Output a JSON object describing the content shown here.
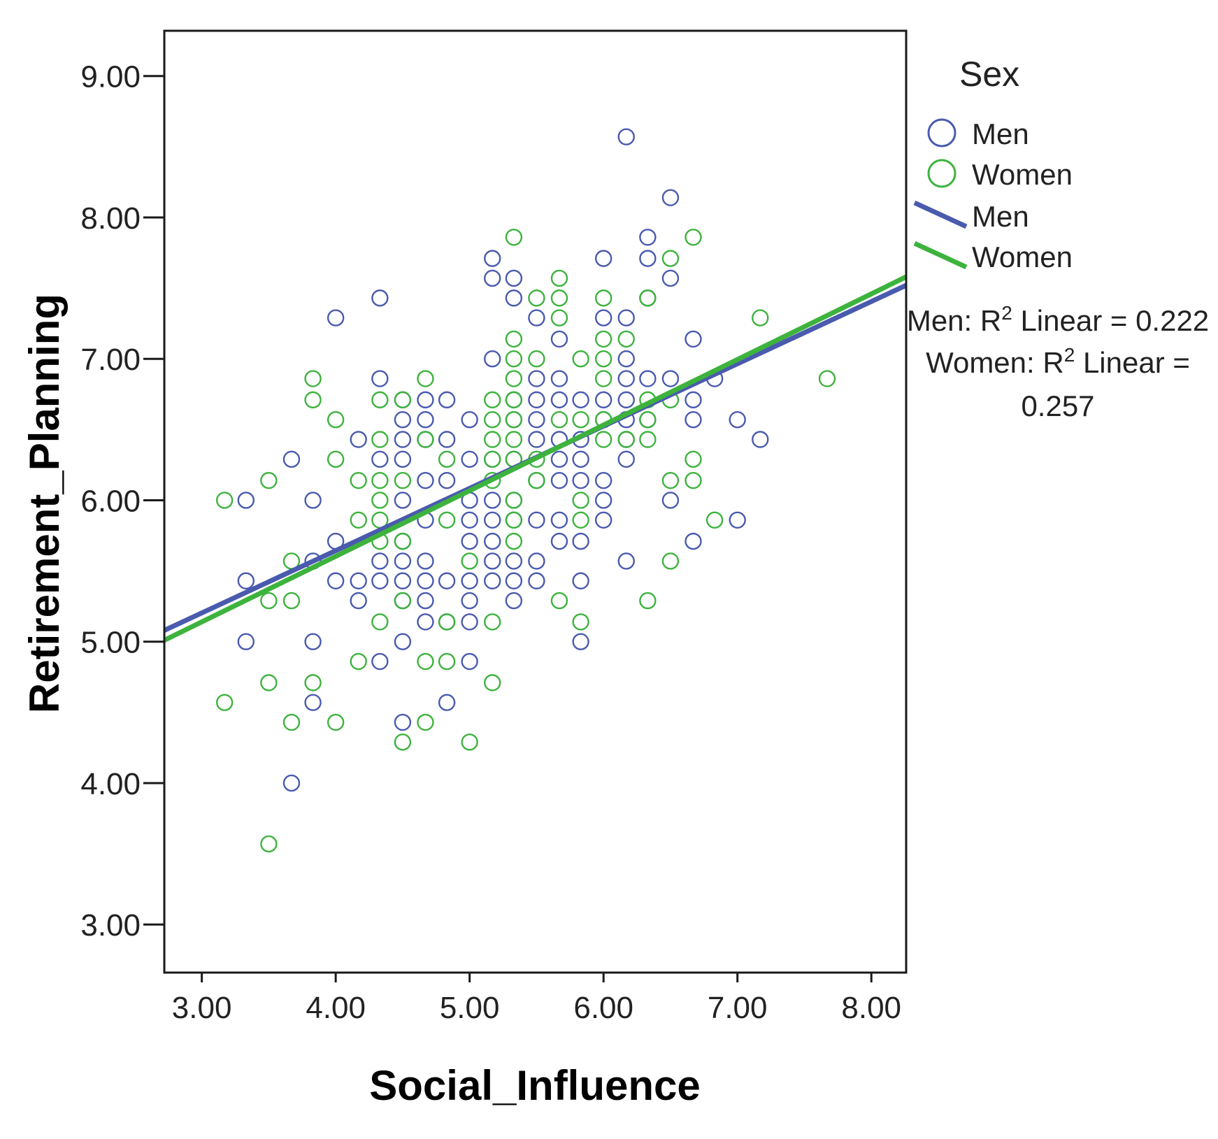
{
  "chart_data": {
    "type": "scatter",
    "title": "",
    "xlabel": "Social_Influence",
    "ylabel": "Retirement_Planning",
    "xlim": [
      2.72,
      8.26
    ],
    "ylim": [
      2.66,
      9.32
    ],
    "x_ticks": [
      3.0,
      4.0,
      5.0,
      6.0,
      7.0,
      8.0
    ],
    "x_tick_labels": [
      "3.00",
      "4.00",
      "5.00",
      "6.00",
      "7.00",
      "8.00"
    ],
    "y_ticks": [
      3.0,
      4.0,
      5.0,
      6.0,
      7.0,
      8.0,
      9.0
    ],
    "y_tick_labels": [
      "3.00",
      "4.00",
      "5.00",
      "6.00",
      "7.00",
      "8.00",
      "9.00"
    ],
    "grid": false,
    "legend": {
      "title": "Sex",
      "placement": "right",
      "items": [
        {
          "label": "Men",
          "kind": "marker",
          "color": "#4a5aae"
        },
        {
          "label": "Women",
          "kind": "marker",
          "color": "#3db33d"
        },
        {
          "label": "Men",
          "kind": "line",
          "color": "#4a5aae"
        },
        {
          "label": "Women",
          "kind": "line",
          "color": "#3db33d"
        }
      ]
    },
    "annotations": [
      {
        "name": "r2-men",
        "prefix": "Men: R",
        "sup": "2",
        "suffix": " Linear = 0.222"
      },
      {
        "name": "r2-women",
        "prefix": "Women: R",
        "sup": "2",
        "suffix": " Linear =",
        "line2": "0.257"
      }
    ],
    "series": [
      {
        "name": "Men",
        "color": "#4a5aae",
        "fit": {
          "type": "linear",
          "r2": 0.222,
          "x": [
            2.72,
            8.26
          ],
          "y": [
            5.08,
            7.52
          ]
        },
        "points": [
          [
            3.33,
            6.0
          ],
          [
            3.33,
            5.43
          ],
          [
            3.33,
            5.0
          ],
          [
            3.67,
            6.29
          ],
          [
            3.67,
            4.0
          ],
          [
            3.83,
            6.0
          ],
          [
            3.83,
            5.0
          ],
          [
            3.83,
            4.57
          ],
          [
            3.83,
            5.57
          ],
          [
            4.0,
            7.29
          ],
          [
            4.0,
            5.71
          ],
          [
            4.0,
            5.43
          ],
          [
            4.17,
            6.43
          ],
          [
            4.17,
            5.43
          ],
          [
            4.17,
            5.29
          ],
          [
            4.33,
            7.43
          ],
          [
            4.33,
            6.86
          ],
          [
            4.33,
            6.29
          ],
          [
            4.33,
            5.57
          ],
          [
            4.33,
            5.43
          ],
          [
            4.33,
            4.86
          ],
          [
            4.5,
            6.71
          ],
          [
            4.5,
            6.57
          ],
          [
            4.5,
            6.43
          ],
          [
            4.5,
            6.29
          ],
          [
            4.5,
            6.0
          ],
          [
            4.5,
            5.71
          ],
          [
            4.5,
            5.57
          ],
          [
            4.5,
            5.43
          ],
          [
            4.5,
            5.29
          ],
          [
            4.5,
            5.0
          ],
          [
            4.5,
            4.43
          ],
          [
            4.67,
            6.71
          ],
          [
            4.67,
            6.57
          ],
          [
            4.67,
            6.43
          ],
          [
            4.67,
            6.14
          ],
          [
            4.67,
            5.86
          ],
          [
            4.67,
            5.57
          ],
          [
            4.67,
            5.43
          ],
          [
            4.67,
            5.29
          ],
          [
            4.67,
            5.14
          ],
          [
            4.83,
            6.71
          ],
          [
            4.83,
            6.43
          ],
          [
            4.83,
            6.14
          ],
          [
            4.83,
            5.43
          ],
          [
            4.83,
            5.14
          ],
          [
            4.83,
            4.57
          ],
          [
            5.0,
            6.57
          ],
          [
            5.0,
            6.29
          ],
          [
            5.0,
            6.0
          ],
          [
            5.0,
            5.86
          ],
          [
            5.0,
            5.71
          ],
          [
            5.0,
            5.43
          ],
          [
            5.0,
            5.29
          ],
          [
            5.0,
            5.14
          ],
          [
            5.0,
            4.86
          ],
          [
            5.17,
            7.71
          ],
          [
            5.17,
            7.57
          ],
          [
            5.17,
            7.0
          ],
          [
            5.17,
            6.29
          ],
          [
            5.17,
            6.0
          ],
          [
            5.17,
            5.86
          ],
          [
            5.17,
            5.71
          ],
          [
            5.17,
            5.57
          ],
          [
            5.17,
            5.43
          ],
          [
            5.33,
            7.57
          ],
          [
            5.33,
            7.43
          ],
          [
            5.33,
            6.71
          ],
          [
            5.33,
            6.57
          ],
          [
            5.33,
            6.29
          ],
          [
            5.33,
            6.0
          ],
          [
            5.33,
            5.86
          ],
          [
            5.33,
            5.57
          ],
          [
            5.33,
            5.43
          ],
          [
            5.33,
            5.29
          ],
          [
            5.5,
            7.29
          ],
          [
            5.5,
            6.86
          ],
          [
            5.5,
            6.71
          ],
          [
            5.5,
            6.57
          ],
          [
            5.5,
            6.43
          ],
          [
            5.5,
            6.14
          ],
          [
            5.5,
            5.86
          ],
          [
            5.5,
            5.57
          ],
          [
            5.5,
            5.43
          ],
          [
            5.67,
            7.14
          ],
          [
            5.67,
            6.86
          ],
          [
            5.67,
            6.71
          ],
          [
            5.67,
            6.43
          ],
          [
            5.67,
            6.29
          ],
          [
            5.67,
            6.14
          ],
          [
            5.67,
            5.86
          ],
          [
            5.67,
            5.71
          ],
          [
            5.83,
            6.71
          ],
          [
            5.83,
            6.43
          ],
          [
            5.83,
            6.29
          ],
          [
            5.83,
            6.14
          ],
          [
            5.83,
            5.71
          ],
          [
            5.83,
            5.43
          ],
          [
            5.83,
            5.0
          ],
          [
            6.0,
            7.71
          ],
          [
            6.0,
            7.29
          ],
          [
            6.0,
            6.71
          ],
          [
            6.0,
            6.57
          ],
          [
            6.0,
            6.14
          ],
          [
            6.0,
            6.0
          ],
          [
            6.0,
            5.86
          ],
          [
            6.17,
            8.57
          ],
          [
            6.17,
            7.29
          ],
          [
            6.17,
            7.0
          ],
          [
            6.17,
            6.86
          ],
          [
            6.17,
            6.71
          ],
          [
            6.17,
            6.57
          ],
          [
            6.17,
            6.43
          ],
          [
            6.17,
            6.29
          ],
          [
            6.17,
            5.57
          ],
          [
            6.33,
            7.86
          ],
          [
            6.33,
            7.71
          ],
          [
            6.33,
            7.43
          ],
          [
            6.33,
            6.86
          ],
          [
            6.33,
            6.57
          ],
          [
            6.5,
            8.14
          ],
          [
            6.5,
            7.57
          ],
          [
            6.5,
            6.86
          ],
          [
            6.5,
            6.0
          ],
          [
            6.67,
            7.14
          ],
          [
            6.67,
            6.71
          ],
          [
            6.67,
            6.57
          ],
          [
            6.67,
            5.71
          ],
          [
            6.83,
            6.86
          ],
          [
            7.0,
            6.57
          ],
          [
            7.0,
            5.86
          ],
          [
            7.17,
            6.43
          ]
        ]
      },
      {
        "name": "Women",
        "color": "#3db33d",
        "fit": {
          "type": "linear",
          "r2": 0.257,
          "x": [
            2.72,
            8.26
          ],
          "y": [
            5.01,
            7.58
          ]
        },
        "points": [
          [
            3.17,
            6.0
          ],
          [
            3.17,
            4.57
          ],
          [
            3.5,
            6.14
          ],
          [
            3.5,
            5.29
          ],
          [
            3.5,
            4.71
          ],
          [
            3.5,
            3.57
          ],
          [
            3.67,
            5.57
          ],
          [
            3.67,
            5.29
          ],
          [
            3.67,
            4.43
          ],
          [
            3.83,
            6.86
          ],
          [
            3.83,
            6.71
          ],
          [
            3.83,
            4.71
          ],
          [
            4.0,
            6.57
          ],
          [
            4.0,
            6.29
          ],
          [
            4.0,
            4.43
          ],
          [
            4.17,
            6.14
          ],
          [
            4.17,
            5.86
          ],
          [
            4.17,
            4.86
          ],
          [
            4.33,
            6.71
          ],
          [
            4.33,
            6.43
          ],
          [
            4.33,
            6.14
          ],
          [
            4.33,
            6.0
          ],
          [
            4.33,
            5.86
          ],
          [
            4.33,
            5.71
          ],
          [
            4.33,
            5.14
          ],
          [
            4.5,
            6.71
          ],
          [
            4.5,
            6.14
          ],
          [
            4.5,
            5.71
          ],
          [
            4.5,
            5.29
          ],
          [
            4.5,
            4.29
          ],
          [
            4.67,
            6.86
          ],
          [
            4.67,
            6.43
          ],
          [
            4.67,
            4.86
          ],
          [
            4.67,
            4.43
          ],
          [
            4.83,
            6.29
          ],
          [
            4.83,
            5.86
          ],
          [
            4.83,
            5.14
          ],
          [
            4.83,
            4.86
          ],
          [
            5.0,
            5.57
          ],
          [
            5.0,
            4.29
          ],
          [
            5.17,
            6.71
          ],
          [
            5.17,
            6.57
          ],
          [
            5.17,
            6.43
          ],
          [
            5.17,
            6.29
          ],
          [
            5.17,
            6.14
          ],
          [
            5.17,
            5.14
          ],
          [
            5.17,
            4.71
          ],
          [
            5.33,
            7.86
          ],
          [
            5.33,
            7.14
          ],
          [
            5.33,
            7.0
          ],
          [
            5.33,
            6.86
          ],
          [
            5.33,
            6.71
          ],
          [
            5.33,
            6.57
          ],
          [
            5.33,
            6.43
          ],
          [
            5.33,
            6.29
          ],
          [
            5.33,
            6.0
          ],
          [
            5.33,
            5.86
          ],
          [
            5.33,
            5.71
          ],
          [
            5.5,
            7.43
          ],
          [
            5.5,
            7.0
          ],
          [
            5.5,
            6.29
          ],
          [
            5.5,
            6.14
          ],
          [
            5.67,
            7.57
          ],
          [
            5.67,
            7.43
          ],
          [
            5.67,
            7.29
          ],
          [
            5.67,
            6.57
          ],
          [
            5.67,
            5.29
          ],
          [
            5.83,
            7.0
          ],
          [
            5.83,
            6.57
          ],
          [
            5.83,
            6.0
          ],
          [
            5.83,
            5.86
          ],
          [
            5.83,
            5.14
          ],
          [
            6.0,
            7.43
          ],
          [
            6.0,
            7.14
          ],
          [
            6.0,
            7.0
          ],
          [
            6.0,
            6.86
          ],
          [
            6.0,
            6.57
          ],
          [
            6.0,
            6.43
          ],
          [
            6.17,
            7.14
          ],
          [
            6.17,
            6.43
          ],
          [
            6.33,
            7.43
          ],
          [
            6.33,
            6.71
          ],
          [
            6.33,
            6.57
          ],
          [
            6.33,
            6.43
          ],
          [
            6.33,
            5.29
          ],
          [
            6.5,
            7.71
          ],
          [
            6.5,
            6.71
          ],
          [
            6.5,
            6.14
          ],
          [
            6.5,
            5.57
          ],
          [
            6.67,
            7.86
          ],
          [
            6.67,
            6.29
          ],
          [
            6.67,
            6.14
          ],
          [
            6.83,
            5.86
          ],
          [
            7.17,
            7.29
          ],
          [
            7.67,
            6.86
          ]
        ]
      }
    ]
  }
}
